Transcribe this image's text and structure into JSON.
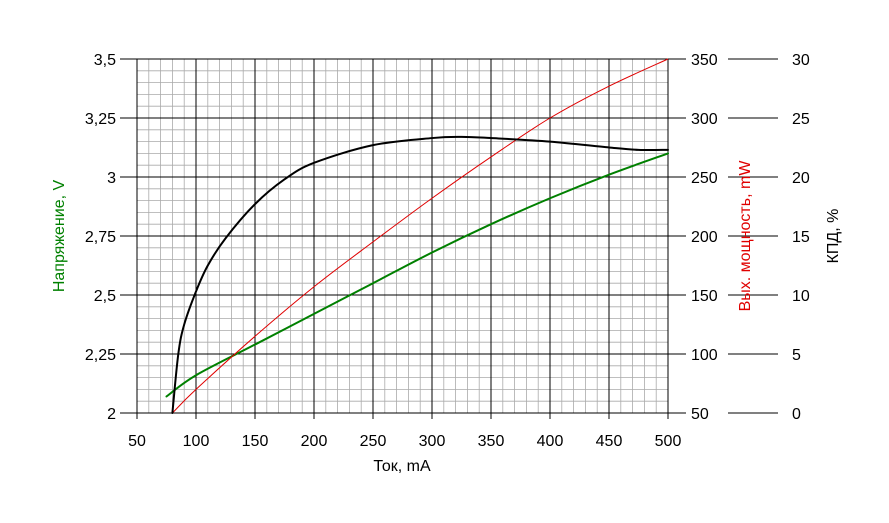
{
  "chart_data": {
    "type": "line",
    "title": "",
    "xlabel": "Ток, mA",
    "xlim": [
      50,
      500
    ],
    "xticks": [
      "50",
      "100",
      "150",
      "200",
      "250",
      "300",
      "350",
      "400",
      "450",
      "500"
    ],
    "axes": {
      "left": {
        "label": "Напряжение, V",
        "color": "#008000",
        "lim": [
          2,
          3.5
        ],
        "ticks": [
          "2",
          "2,25",
          "2,5",
          "2,75",
          "3",
          "3,25",
          "3,5"
        ]
      },
      "right1": {
        "label": "Вых. мощность, mW",
        "color": "#e00000",
        "lim": [
          50,
          350
        ],
        "ticks": [
          "50",
          "100",
          "150",
          "200",
          "250",
          "300",
          "350"
        ]
      },
      "right2": {
        "label": "КПД, %",
        "color": "#000000",
        "lim": [
          0,
          30
        ],
        "ticks": [
          "0",
          "5",
          "10",
          "15",
          "20",
          "25",
          "30"
        ]
      }
    },
    "grid": true,
    "series": [
      {
        "axis": "left",
        "color": "#008000",
        "x": [
          75,
          100,
          150,
          200,
          250,
          300,
          350,
          400,
          450,
          500
        ],
        "y": [
          2.07,
          2.16,
          2.29,
          2.42,
          2.55,
          2.68,
          2.8,
          2.91,
          3.01,
          3.1
        ]
      },
      {
        "axis": "right1",
        "color": "#e00000",
        "x": [
          80,
          100,
          150,
          200,
          250,
          300,
          350,
          400,
          450,
          500
        ],
        "y": [
          50,
          70,
          115,
          157,
          195,
          232,
          267,
          300,
          327,
          350
        ]
      },
      {
        "axis": "right2",
        "color": "#000000",
        "x": [
          80,
          85,
          90,
          100,
          110,
          125,
          150,
          175,
          200,
          250,
          300,
          325,
          350,
          400,
          450,
          475,
          500
        ],
        "y": [
          0,
          5,
          7.5,
          10.3,
          12.5,
          14.8,
          17.7,
          19.8,
          21.2,
          22.7,
          23.3,
          23.4,
          23.3,
          23.0,
          22.5,
          22.3,
          22.3
        ]
      }
    ]
  }
}
